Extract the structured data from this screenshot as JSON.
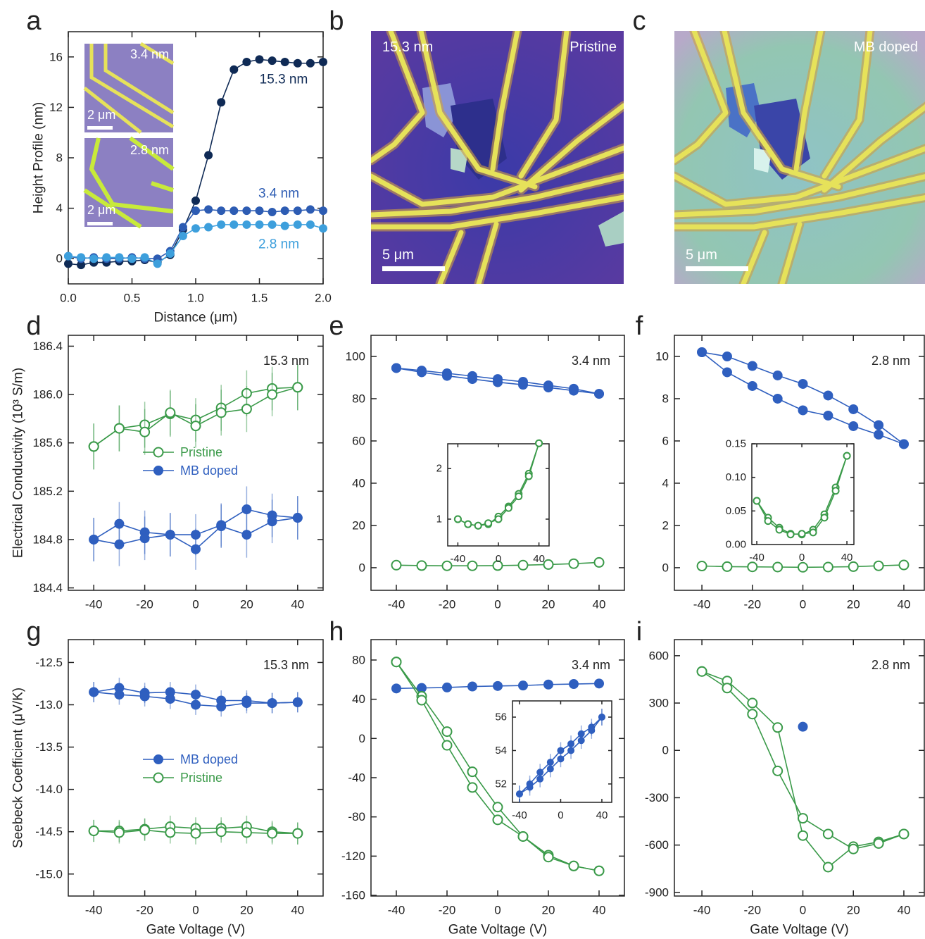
{
  "chart_data": [
    {
      "type": "line",
      "panel": "a",
      "x_label": "Distance (μm)",
      "y_label": "Height Profile (nm)",
      "x": [
        0,
        0.1,
        0.2,
        0.3,
        0.4,
        0.5,
        0.6,
        0.7,
        0.8,
        0.9,
        1.0,
        1.1,
        1.2,
        1.3,
        1.4,
        1.5,
        1.6,
        1.7,
        1.8,
        1.9,
        2.0
      ],
      "xlim": [
        0,
        2
      ],
      "ylim": [
        -2,
        18
      ],
      "xticks": [
        {
          "value": 0,
          "label": "0.0"
        },
        0.5,
        {
          "value": 1,
          "label": "1.0"
        },
        1.5,
        {
          "value": 2,
          "label": "2.0"
        }
      ],
      "yticks": [
        0,
        4,
        8,
        12,
        16
      ],
      "series": [
        {
          "name": "15.3 nm",
          "color": "#0f2a55",
          "values": [
            -0.4,
            -0.5,
            -0.3,
            -0.3,
            -0.2,
            -0.2,
            -0.1,
            -0.3,
            0.3,
            2.3,
            4.6,
            8.2,
            12.4,
            15.0,
            15.6,
            15.8,
            15.7,
            15.6,
            15.5,
            15.5,
            15.6
          ]
        },
        {
          "name": "3.4 nm",
          "color": "#2d5cb3",
          "values": [
            0.2,
            0,
            0.1,
            0,
            0,
            0.1,
            0,
            0,
            0.6,
            2.5,
            3.8,
            3.9,
            3.8,
            3.8,
            3.8,
            3.8,
            3.7,
            3.8,
            3.8,
            3.9,
            3.8
          ]
        },
        {
          "name": "2.8 nm",
          "color": "#3d9fdc",
          "values": [
            0.2,
            0.1,
            0,
            0.1,
            0.1,
            0,
            0.1,
            -0.4,
            0.4,
            1.8,
            2.4,
            2.5,
            2.7,
            2.7,
            2.7,
            2.7,
            2.7,
            2.6,
            2.7,
            2.7,
            2.4
          ]
        }
      ],
      "inset_images": [
        {
          "thickness": "3.4 nm",
          "scale": "2 μm"
        },
        {
          "thickness": "2.8 nm",
          "scale": "2 μm"
        }
      ]
    },
    {
      "type": "line",
      "panel": "d",
      "annotation": "15.3 nm",
      "y_label": "Electrical Conductivity (10³ S/m)",
      "legend": true,
      "x": [
        -40,
        -30,
        -20,
        -10,
        0,
        10,
        20,
        30,
        40
      ],
      "xlim": [
        -50,
        50
      ],
      "ylim": [
        184.38,
        186.49
      ],
      "xticks": [
        -40,
        -20,
        0,
        20,
        40
      ],
      "yticks": [
        184.4,
        184.8,
        185.2,
        185.6,
        {
          "value": 186,
          "label": "186.0"
        },
        186.4
      ],
      "series": [
        {
          "name": "Pristine",
          "color": "#3a9a49",
          "marker": "open",
          "sweeps": [
            [
              185.57,
              185.72,
              185.75,
              185.84,
              185.79,
              185.89,
              186.01,
              186.05,
              186.06
            ],
            [
              185.57,
              185.72,
              185.69,
              185.85,
              185.74,
              185.85,
              185.88,
              186.0,
              186.06
            ]
          ],
          "errors": [
            0.19,
            0.19,
            0.19,
            0.19,
            0.18,
            0.19,
            0.19,
            0.18,
            0.19
          ]
        },
        {
          "name": "MB doped",
          "color": "#2f5fbf",
          "marker": "filled",
          "sweeps": [
            [
              184.8,
              184.93,
              184.86,
              184.84,
              184.84,
              184.92,
              185.05,
              185.0,
              184.98
            ],
            [
              184.8,
              184.76,
              184.81,
              184.84,
              184.72,
              184.91,
              184.84,
              184.95,
              184.98
            ]
          ],
          "errors": [
            0.18,
            0.18,
            0.18,
            0.18,
            0.17,
            0.18,
            0.19,
            0.18,
            0.18
          ]
        }
      ]
    },
    {
      "type": "line",
      "panel": "e",
      "annotation": "3.4 nm",
      "x": [
        -40,
        -30,
        -20,
        -10,
        0,
        10,
        20,
        30,
        40
      ],
      "xlim": [
        -50,
        50
      ],
      "ylim": [
        -10.7,
        110
      ],
      "xticks": [
        -40,
        -20,
        0,
        20,
        40
      ],
      "yticks": [
        0,
        20,
        40,
        60,
        80,
        100
      ],
      "series": [
        {
          "color": "#2f5fbf",
          "marker": "filled",
          "sweeps": [
            [
              94.5,
              93.3,
              92.0,
              90.7,
              89.3,
              88.0,
              86.3,
              84.7,
              82.3
            ],
            [
              94.5,
              92.5,
              90.8,
              89.3,
              87.8,
              86.6,
              85.3,
              83.8,
              82.3
            ]
          ]
        },
        {
          "color": "#3a9a49",
          "marker": "open",
          "sweeps": [
            [
              1.2,
              1.0,
              0.9,
              0.9,
              1.0,
              1.2,
              1.5,
              1.9,
              2.5
            ]
          ]
        }
      ],
      "inset": {
        "x": [
          -40,
          -30,
          -20,
          -10,
          0,
          10,
          20,
          30,
          40
        ],
        "xlim": [
          -50,
          50
        ],
        "ylim": [
          0.47,
          2.49
        ],
        "xticks": [
          -40,
          0,
          40
        ],
        "yticks": [
          1,
          2
        ],
        "series": [
          {
            "color": "#3a9a49",
            "marker": "open",
            "sweeps": [
              [
                1.0,
                0.9,
                0.87,
                0.9,
                1.05,
                1.25,
                1.5,
                1.9,
                2.5
              ],
              [
                1.0,
                0.9,
                0.87,
                0.92,
                1.0,
                1.22,
                1.45,
                1.85,
                2.5
              ]
            ]
          }
        ]
      }
    },
    {
      "type": "line",
      "panel": "f",
      "annotation": "2.8 nm",
      "x": [
        -40,
        -30,
        -20,
        -10,
        0,
        10,
        20,
        30,
        40
      ],
      "xlim": [
        -50.9,
        48.1
      ],
      "ylim": [
        -1.07,
        11
      ],
      "xticks": [
        -40,
        -20,
        0,
        20,
        40
      ],
      "yticks": [
        0,
        2,
        4,
        6,
        8,
        10
      ],
      "series": [
        {
          "color": "#2f5fbf",
          "marker": "filled",
          "sweeps": [
            [
              10.2,
              10.0,
              9.55,
              9.1,
              8.7,
              8.15,
              7.5,
              6.75,
              5.85
            ],
            [
              10.2,
              9.25,
              8.6,
              8.0,
              7.45,
              7.2,
              6.7,
              6.3,
              5.85
            ]
          ]
        },
        {
          "color": "#3a9a49",
          "marker": "open",
          "sweeps": [
            [
              0.08,
              0.05,
              0.04,
              0.03,
              0.02,
              0.03,
              0.05,
              0.09,
              0.13
            ]
          ]
        }
      ],
      "inset": {
        "x": [
          -40,
          -30,
          -20,
          -10,
          0,
          10,
          20,
          30,
          40
        ],
        "xlim": [
          -44.4,
          46.2
        ],
        "ylim": [
          0,
          0.15
        ],
        "xticks": [
          -40,
          0,
          40
        ],
        "yticks": [
          {
            "value": 0,
            "label": "0.00"
          },
          0.05,
          {
            "value": 0.1,
            "label": "0.10"
          },
          0.15
        ],
        "series": [
          {
            "color": "#3a9a49",
            "marker": "open",
            "sweeps": [
              [
                0.065,
                0.04,
                0.025,
                0.016,
                0.015,
                0.022,
                0.045,
                0.085,
                0.132
              ],
              [
                0.065,
                0.035,
                0.022,
                0.015,
                0.016,
                0.018,
                0.04,
                0.08,
                0.132
              ]
            ]
          }
        ]
      }
    },
    {
      "type": "line",
      "panel": "g",
      "annotation": "15.3 nm",
      "y_label": "Seebeck Coefficient (μV/K)",
      "x_label": "Gate Voltage (V)",
      "legend": true,
      "x": [
        -40,
        -30,
        -20,
        -10,
        0,
        10,
        20,
        30,
        40
      ],
      "xlim": [
        -50,
        50
      ],
      "ylim": [
        -15.26,
        -12.23
      ],
      "xticks": [
        -40,
        -20,
        0,
        20,
        40
      ],
      "yticks": [
        -12.5,
        {
          "value": -13,
          "label": "-13.0"
        },
        -13.5,
        {
          "value": -14,
          "label": "-14.0"
        },
        -14.5,
        {
          "value": -15,
          "label": "-15.0"
        }
      ],
      "series": [
        {
          "name": "MB doped",
          "color": "#2f5fbf",
          "marker": "filled",
          "sweeps": [
            [
              -12.85,
              -12.8,
              -12.86,
              -12.85,
              -12.88,
              -12.95,
              -12.95,
              -12.98,
              -12.97
            ],
            [
              -12.85,
              -12.88,
              -12.9,
              -12.93,
              -13.0,
              -13.02,
              -12.98,
              -12.98,
              -12.97
            ]
          ],
          "errors": [
            0.12,
            0.12,
            0.12,
            0.12,
            0.12,
            0.12,
            0.12,
            0.12,
            0.12
          ]
        },
        {
          "name": "Pristine",
          "color": "#3a9a49",
          "marker": "open",
          "sweeps": [
            [
              -14.49,
              -14.49,
              -14.47,
              -14.44,
              -14.46,
              -14.46,
              -14.44,
              -14.5,
              -14.52
            ],
            [
              -14.49,
              -14.51,
              -14.48,
              -14.51,
              -14.52,
              -14.5,
              -14.51,
              -14.52,
              -14.52
            ]
          ],
          "errors": [
            0.13,
            0.13,
            0.13,
            0.13,
            0.13,
            0.13,
            0.13,
            0.13,
            0.13
          ]
        }
      ]
    },
    {
      "type": "line",
      "panel": "h",
      "annotation": "3.4 nm",
      "x_label": "Gate Voltage (V)",
      "x": [
        -40,
        -30,
        -20,
        -10,
        0,
        10,
        20,
        30,
        40
      ],
      "xlim": [
        -50,
        50
      ],
      "ylim": [
        -160.7,
        100.8
      ],
      "xticks": [
        -40,
        -20,
        0,
        20,
        40
      ],
      "yticks": [
        -160,
        -120,
        -80,
        -40,
        0,
        40,
        80
      ],
      "series": [
        {
          "color": "#2f5fbf",
          "marker": "filled",
          "sweeps": [
            [
              51,
              51.5,
              52,
              53,
              53.5,
              54,
              55,
              55.5,
              56
            ]
          ]
        },
        {
          "color": "#3a9a49",
          "marker": "open",
          "sweeps": [
            [
              78,
              43,
              7,
              -34,
              -70,
              -100,
              -119,
              -130,
              -135
            ],
            [
              78,
              39,
              -7,
              -50,
              -83,
              -100,
              -121,
              -130,
              -135
            ]
          ]
        }
      ],
      "inset": {
        "x": [
          -40,
          -30,
          -20,
          -10,
          0,
          10,
          20,
          30,
          40
        ],
        "xlim": [
          -46.8,
          49.6
        ],
        "ylim": [
          50.9,
          56.97
        ],
        "xticks": [
          -40,
          0,
          40
        ],
        "yticks": [
          52,
          54,
          56
        ],
        "series": [
          {
            "color": "#2f5fbf",
            "marker": "filled",
            "sweeps": [
              [
                51.4,
                52.0,
                52.7,
                53.3,
                54.0,
                54.4,
                55.0,
                55.4,
                56.0
              ],
              [
                51.4,
                51.8,
                52.3,
                52.9,
                53.5,
                54.0,
                54.6,
                55.2,
                56.0
              ]
            ],
            "errors": [
              0.5,
              0.5,
              0.5,
              0.5,
              0.5,
              0.5,
              0.5,
              0.5,
              0.5
            ]
          }
        ]
      }
    },
    {
      "type": "line",
      "panel": "i",
      "annotation": "2.8 nm",
      "x_label": "Gate Voltage (V)",
      "x": [
        -40,
        -30,
        -20,
        -10,
        0,
        10,
        20,
        30,
        40
      ],
      "xlim": [
        -50.9,
        48.1
      ],
      "ylim": [
        -923,
        702
      ],
      "xticks": [
        -40,
        -20,
        0,
        20,
        40
      ],
      "yticks": [
        -900,
        -600,
        -300,
        0,
        300,
        600
      ],
      "series": [
        {
          "color": "#3a9a49",
          "marker": "open",
          "sweeps": [
            [
              500,
              440,
              300,
              145,
              -540,
              -740,
              -610,
              -580,
              -530
            ],
            [
              500,
              395,
              230,
              -130,
              -430,
              -530,
              -625,
              -590,
              -530
            ]
          ]
        },
        {
          "color": "#2f5fbf",
          "marker": "filled",
          "sweeps": [
            [
              null,
              null,
              null,
              null,
              150,
              null,
              null,
              null,
              null
            ]
          ]
        }
      ]
    }
  ],
  "images": [
    {
      "panel": "b",
      "thickness": "15.3 nm",
      "condition": "Pristine",
      "scale": "5 μm"
    },
    {
      "panel": "c",
      "condition": "MB doped",
      "scale": "5 μm"
    }
  ]
}
